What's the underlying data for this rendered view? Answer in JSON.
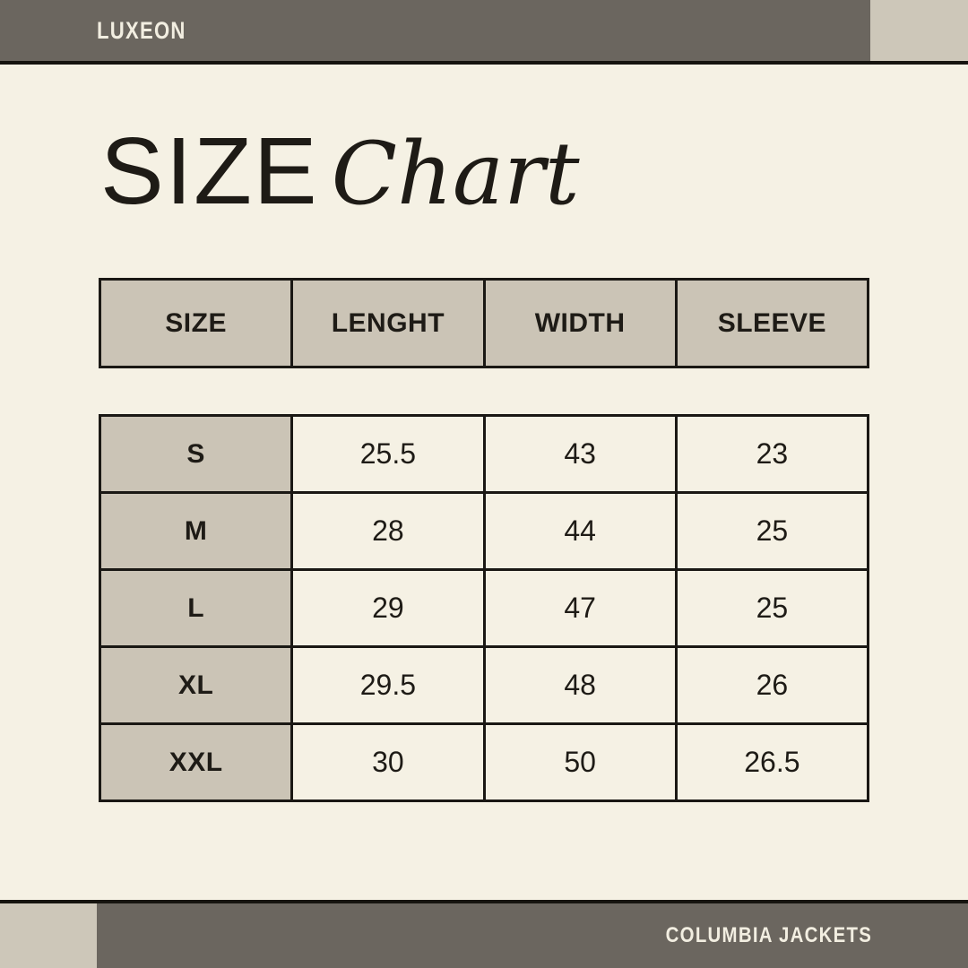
{
  "colors": {
    "background": "#f5f1e4",
    "bar_dark": "#6b665f",
    "accent_light": "#cdc7b9",
    "cell_shade": "#cbc4b6",
    "ink": "#1a1814",
    "bar_text": "#f2eee1"
  },
  "top_bar": {
    "brand": "LUXEON"
  },
  "title": {
    "main": "SIZE",
    "script": "Chart"
  },
  "chart_data": {
    "type": "table",
    "title": "SIZE Chart",
    "columns": [
      "SIZE",
      "LENGHT",
      "WIDTH",
      "SLEEVE"
    ],
    "rows": [
      [
        "S",
        "25.5",
        "43",
        "23"
      ],
      [
        "M",
        "28",
        "44",
        "25"
      ],
      [
        "L",
        "29",
        "47",
        "25"
      ],
      [
        "XL",
        "29.5",
        "48",
        "26"
      ],
      [
        "XXL",
        "30",
        "50",
        "26.5"
      ]
    ]
  },
  "bottom_bar": {
    "label": "COLUMBIA JACKETS"
  }
}
